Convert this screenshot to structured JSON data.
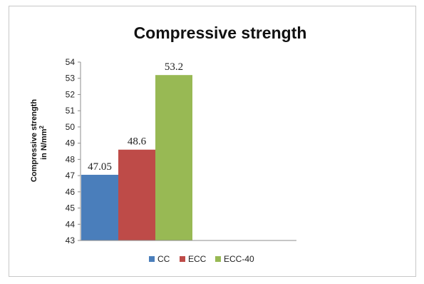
{
  "chart_data": {
    "type": "bar",
    "title": "Compressive strength",
    "ylabel_line1": "Compressive strength",
    "ylabel_line2": "in N/mm",
    "ylabel_superscript": "2",
    "xlabel": "",
    "ylim": [
      43,
      54
    ],
    "yticks": [
      43,
      44,
      45,
      46,
      47,
      48,
      49,
      50,
      51,
      52,
      53,
      54
    ],
    "grid": false,
    "legend_position": "bottom",
    "series": [
      {
        "name": "CC",
        "value": 47.05,
        "label": "47.05",
        "color": "#4a7ebb"
      },
      {
        "name": "ECC",
        "value": 48.6,
        "label": "48.6",
        "color": "#be4b48"
      },
      {
        "name": "ECC-40",
        "value": 53.2,
        "label": "53.2",
        "color": "#98b954"
      }
    ]
  }
}
